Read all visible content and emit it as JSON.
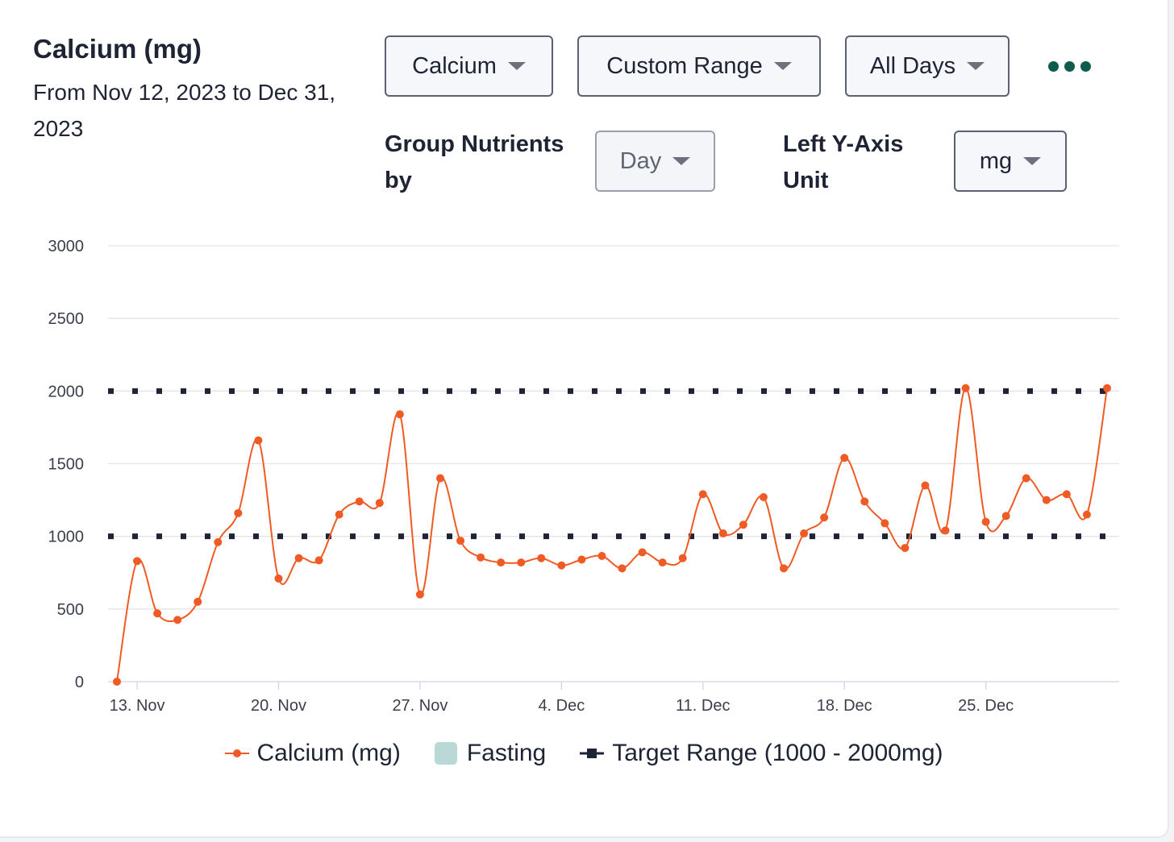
{
  "header": {
    "title": "Calcium (mg)",
    "subtitle": "From Nov 12, 2023 to Dec 31, 2023"
  },
  "controls": {
    "nutrient": "Calcium",
    "range": "Custom Range",
    "days": "All Days",
    "group_label": "Group Nutrients by",
    "group_value": "Day",
    "axis_label": "Left Y-Axis Unit",
    "axis_value": "mg"
  },
  "colors": {
    "series": "#f05a24",
    "target": "#1e2433",
    "fasting": "#b9d8d6",
    "grid": "#e3e5e9",
    "more_icon": "#0f5c4e"
  },
  "chart_data": {
    "type": "line",
    "x_start": "2023-11-12",
    "x_end": "2023-12-31",
    "xticks": [
      "13. Nov",
      "20. Nov",
      "27. Nov",
      "4. Dec",
      "11. Dec",
      "18. Dec",
      "25. Dec"
    ],
    "yticks": [
      "0",
      "500",
      "1000",
      "1500",
      "2000",
      "2500",
      "3000"
    ],
    "ylim": [
      0,
      3000
    ],
    "grid": true,
    "legend_position": "bottom",
    "series": [
      {
        "name": "Calcium (mg)",
        "values": [
          0,
          830,
          470,
          425,
          550,
          960,
          1160,
          1660,
          710,
          850,
          835,
          1150,
          1240,
          1230,
          1840,
          600,
          1400,
          970,
          855,
          820,
          820,
          850,
          800,
          840,
          865,
          780,
          890,
          820,
          850,
          1290,
          1020,
          1080,
          1270,
          780,
          1020,
          1130,
          1540,
          1240,
          1090,
          920,
          1350,
          1040,
          2020,
          1100,
          1140,
          1400,
          1250,
          1290,
          1150,
          2020
        ]
      }
    ],
    "fasting": {
      "name": "Fasting"
    },
    "target_range": {
      "name": "Target Range (1000 - 2000mg)",
      "low": 1000,
      "high": 2000
    }
  }
}
